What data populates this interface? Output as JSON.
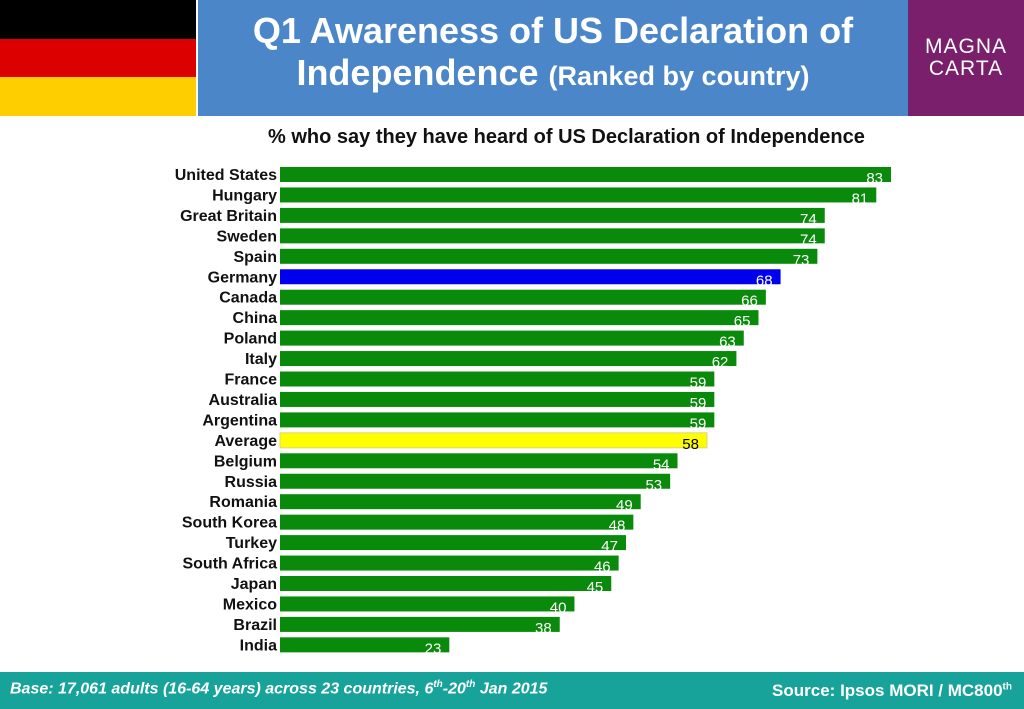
{
  "flag": {
    "colors": [
      "#000000",
      "#dd0000",
      "#ffce00"
    ]
  },
  "header": {
    "title_line1": "Q1 Awareness of US Declaration of",
    "title_line2": "Independence",
    "title_sub": "(Ranked by country)"
  },
  "logo": {
    "line1": "MAGNA",
    "line2": "CARTA",
    "color": "#7a1f6c"
  },
  "footer": {
    "base_prefix": "Base: 17,061 adults (16-64 years) across 23 countries, 6",
    "base_sup1": "th",
    "base_mid": "-20",
    "base_sup2": "th",
    "base_suffix": " Jan 2015",
    "source_text": "Source: Ipsos MORI / MC800",
    "source_sup": "th"
  },
  "chart_data": {
    "type": "bar",
    "orientation": "horizontal",
    "title": "% who say they have heard of US Declaration of Independence",
    "xlim": [
      0,
      83
    ],
    "grid": false,
    "colors": {
      "default": "#0a8a0a",
      "highlight_germany": "#0000ee",
      "average": "#ffff00",
      "label_default": "#ffffff",
      "label_average": "#000000"
    },
    "categories": [
      "United States",
      "Hungary",
      "Great Britain",
      "Sweden",
      "Spain",
      "Germany",
      "Canada",
      "China",
      "Poland",
      "Italy",
      "France",
      "Australia",
      "Argentina",
      "Average",
      "Belgium",
      "Russia",
      "Romania",
      "South Korea",
      "Turkey",
      "South Africa",
      "Japan",
      "Mexico",
      "Brazil",
      "India"
    ],
    "values": [
      83,
      81,
      74,
      74,
      73,
      68,
      66,
      65,
      63,
      62,
      59,
      59,
      59,
      58,
      54,
      53,
      49,
      48,
      47,
      46,
      45,
      40,
      38,
      23
    ],
    "highlight": {
      "Germany": "highlight_germany",
      "Average": "average"
    }
  }
}
